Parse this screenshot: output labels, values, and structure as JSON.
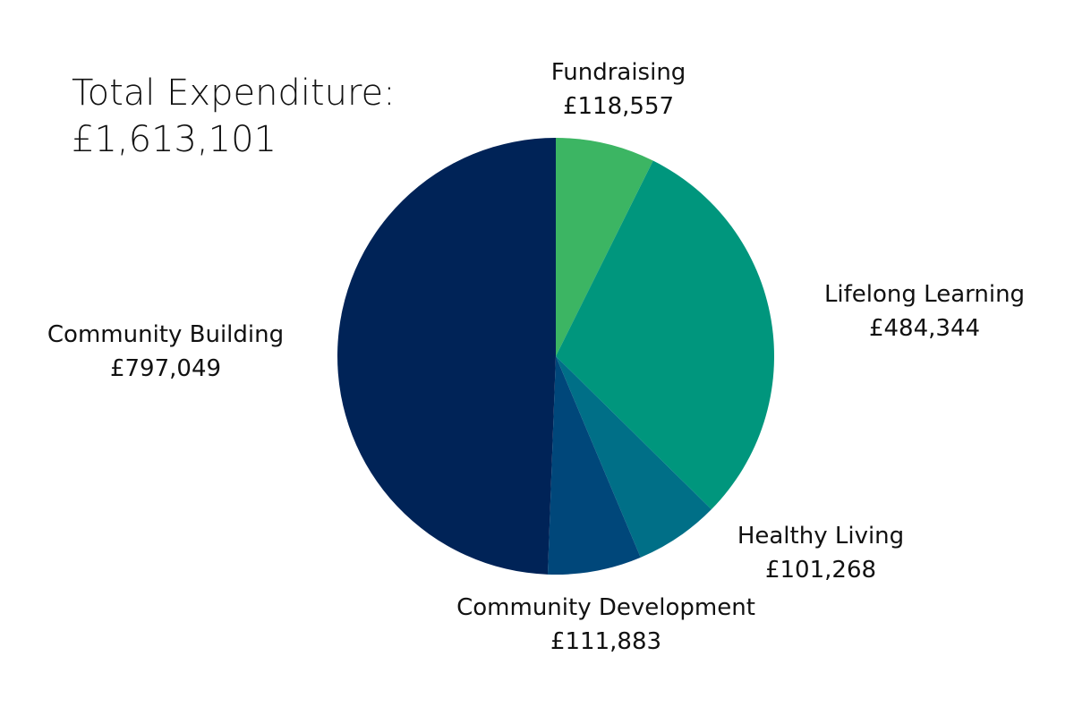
{
  "total": {
    "label": "Total Expenditure:",
    "value": "£1,613,101"
  },
  "chart_data": {
    "type": "pie",
    "title": "",
    "slices": [
      {
        "name": "Fundraising",
        "value": 118557,
        "value_label": "£118,557",
        "color": "#3CB563"
      },
      {
        "name": "Lifelong Learning",
        "value": 484344,
        "value_label": "£484,344",
        "color": "#00967D"
      },
      {
        "name": "Healthy Living",
        "value": 101268,
        "value_label": "£101,268",
        "color": "#006F87"
      },
      {
        "name": "Community Development",
        "value": 111883,
        "value_label": "£111,883",
        "color": "#00477A"
      },
      {
        "name": "Community Building",
        "value": 797049,
        "value_label": "£797,049",
        "color": "#002357"
      }
    ]
  }
}
